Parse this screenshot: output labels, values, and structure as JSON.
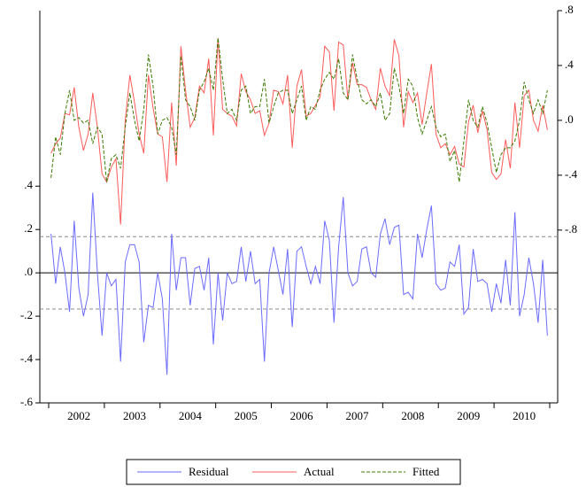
{
  "chart_data": {
    "type": "line",
    "categories": [
      null,
      null,
      null,
      null,
      null,
      null,
      "2002",
      null,
      null,
      null,
      null,
      null,
      null,
      null,
      null,
      null,
      null,
      null,
      "2003",
      null,
      null,
      null,
      null,
      null,
      null,
      null,
      null,
      null,
      null,
      null,
      "2004",
      null,
      null,
      null,
      null,
      null,
      null,
      null,
      null,
      null,
      null,
      null,
      "2005",
      null,
      null,
      null,
      null,
      null,
      null,
      null,
      null,
      null,
      null,
      null,
      "2006",
      null,
      null,
      null,
      null,
      null,
      null,
      null,
      null,
      null,
      null,
      null,
      "2007",
      null,
      null,
      null,
      null,
      null,
      null,
      null,
      null,
      null,
      null,
      null,
      "2008",
      null,
      null,
      null,
      null,
      null,
      null,
      null,
      null,
      null,
      null,
      null,
      "2009",
      null,
      null,
      null,
      null,
      null,
      null,
      null,
      null,
      null,
      null,
      null,
      "2010",
      null,
      null,
      null,
      null,
      null
    ],
    "series": [
      {
        "name": "Residual",
        "color": "#6b6bff",
        "axis": "y",
        "style": "solid",
        "values": [
          0.18,
          -0.05,
          0.12,
          0.0,
          -0.18,
          0.24,
          -0.07,
          -0.2,
          -0.1,
          0.37,
          0.0,
          -0.29,
          0.0,
          -0.06,
          -0.03,
          -0.41,
          0.05,
          0.13,
          0.13,
          0.05,
          -0.32,
          -0.15,
          -0.16,
          0.0,
          -0.12,
          -0.47,
          0.18,
          -0.08,
          0.07,
          0.07,
          -0.15,
          0.02,
          0.03,
          -0.08,
          0.07,
          -0.33,
          0.0,
          -0.22,
          0.0,
          -0.05,
          -0.04,
          0.12,
          -0.04,
          0.1,
          -0.05,
          -0.03,
          -0.41,
          0.0,
          0.12,
          0.01,
          -0.1,
          0.11,
          -0.25,
          0.1,
          0.12,
          0.03,
          -0.05,
          0.03,
          -0.05,
          0.24,
          0.15,
          -0.23,
          0.12,
          0.35,
          0.0,
          -0.06,
          -0.04,
          0.11,
          0.12,
          0.0,
          -0.02,
          0.18,
          0.25,
          0.13,
          0.21,
          0.22,
          -0.1,
          -0.09,
          -0.12,
          0.18,
          0.07,
          0.2,
          0.31,
          -0.05,
          -0.08,
          -0.07,
          0.05,
          0.03,
          0.13,
          -0.19,
          -0.16,
          0.11,
          -0.04,
          -0.03,
          -0.05,
          -0.18,
          -0.05,
          -0.14,
          0.06,
          -0.15,
          0.28,
          -0.2,
          -0.1,
          0.07,
          -0.05,
          -0.23,
          0.06,
          -0.29
        ]
      },
      {
        "name": "Actual",
        "color": "#ff5a5a",
        "axis": "y2",
        "style": "solid",
        "values": [
          -0.24,
          -0.17,
          -0.13,
          0.05,
          0.04,
          0.24,
          -0.05,
          -0.22,
          -0.1,
          0.2,
          -0.05,
          -0.39,
          -0.45,
          -0.34,
          -0.28,
          -0.76,
          0.0,
          0.33,
          0.13,
          -0.1,
          -0.24,
          0.33,
          0.09,
          -0.1,
          -0.12,
          -0.45,
          0.13,
          -0.33,
          0.54,
          0.22,
          -0.05,
          0.02,
          0.25,
          0.2,
          0.45,
          -0.11,
          0.6,
          0.08,
          0.05,
          0.03,
          -0.04,
          0.34,
          0.21,
          0.15,
          0.05,
          0.07,
          -0.11,
          -0.02,
          0.22,
          0.21,
          0.12,
          0.33,
          -0.2,
          0.25,
          0.37,
          0.03,
          0.05,
          0.11,
          0.17,
          0.54,
          0.5,
          0.07,
          0.57,
          0.55,
          0.15,
          0.42,
          0.26,
          0.26,
          0.24,
          0.15,
          0.08,
          0.38,
          0.25,
          0.18,
          0.59,
          0.47,
          -0.05,
          0.21,
          0.13,
          0.2,
          -0.03,
          0.2,
          0.41,
          -0.1,
          -0.2,
          -0.17,
          -0.25,
          -0.19,
          -0.32,
          -0.34,
          -0.01,
          0.11,
          -0.09,
          0.07,
          -0.07,
          -0.38,
          -0.43,
          -0.39,
          -0.14,
          -0.35,
          0.13,
          -0.2,
          0.18,
          0.22,
          0.0,
          -0.08,
          0.11,
          -0.07
        ]
      },
      {
        "name": "Fitted",
        "color": "#3a7a00",
        "axis": "y2",
        "style": "dashed",
        "values": [
          -0.42,
          -0.12,
          -0.25,
          0.05,
          0.22,
          0.0,
          0.02,
          -0.02,
          0.0,
          -0.17,
          -0.05,
          -0.1,
          -0.45,
          -0.28,
          -0.25,
          -0.35,
          -0.05,
          0.2,
          0.0,
          -0.15,
          0.08,
          0.48,
          0.25,
          -0.1,
          0.0,
          0.02,
          -0.05,
          -0.25,
          0.47,
          0.15,
          0.1,
          0.0,
          0.22,
          0.28,
          0.38,
          0.22,
          0.6,
          0.3,
          0.05,
          0.08,
          0.0,
          0.22,
          0.25,
          0.05,
          0.1,
          0.1,
          0.3,
          -0.02,
          0.1,
          0.2,
          0.22,
          0.22,
          0.05,
          0.15,
          0.25,
          0.0,
          0.1,
          0.08,
          0.22,
          0.3,
          0.35,
          0.3,
          0.45,
          0.2,
          0.15,
          0.48,
          0.3,
          0.15,
          0.12,
          0.15,
          0.1,
          0.2,
          0.0,
          0.05,
          0.38,
          0.25,
          0.05,
          0.3,
          0.25,
          0.02,
          -0.1,
          0.0,
          0.1,
          -0.05,
          -0.12,
          -0.1,
          -0.3,
          -0.22,
          -0.45,
          -0.15,
          0.15,
          0.0,
          -0.05,
          0.1,
          -0.02,
          -0.2,
          -0.38,
          -0.25,
          -0.2,
          -0.2,
          -0.15,
          0.0,
          0.28,
          0.15,
          0.05,
          0.15,
          0.05,
          0.22
        ]
      }
    ],
    "ylim": [
      -0.6,
      1.21
    ],
    "yticks": [
      {
        "value": -0.6,
        "label": "-.6"
      },
      {
        "value": -0.4,
        "label": "-.4"
      },
      {
        "value": -0.2,
        "label": "-.2"
      },
      {
        "value": 0,
        "label": ".0"
      },
      {
        "value": 0.2,
        "label": ".2"
      },
      {
        "value": 0.4,
        "label": ".4"
      }
    ],
    "y2lim": [
      -2.06,
      0.8
    ],
    "y2ticks": [
      {
        "value": -0.8,
        "label": "-.8"
      },
      {
        "value": -0.4,
        "label": "-.4"
      },
      {
        "value": 0,
        "label": ".0"
      },
      {
        "value": 0.4,
        "label": ".4"
      },
      {
        "value": 0.8,
        "label": ".8"
      }
    ],
    "reference_lines": [
      -0.167,
      0.167
    ],
    "legend": "bottom"
  }
}
